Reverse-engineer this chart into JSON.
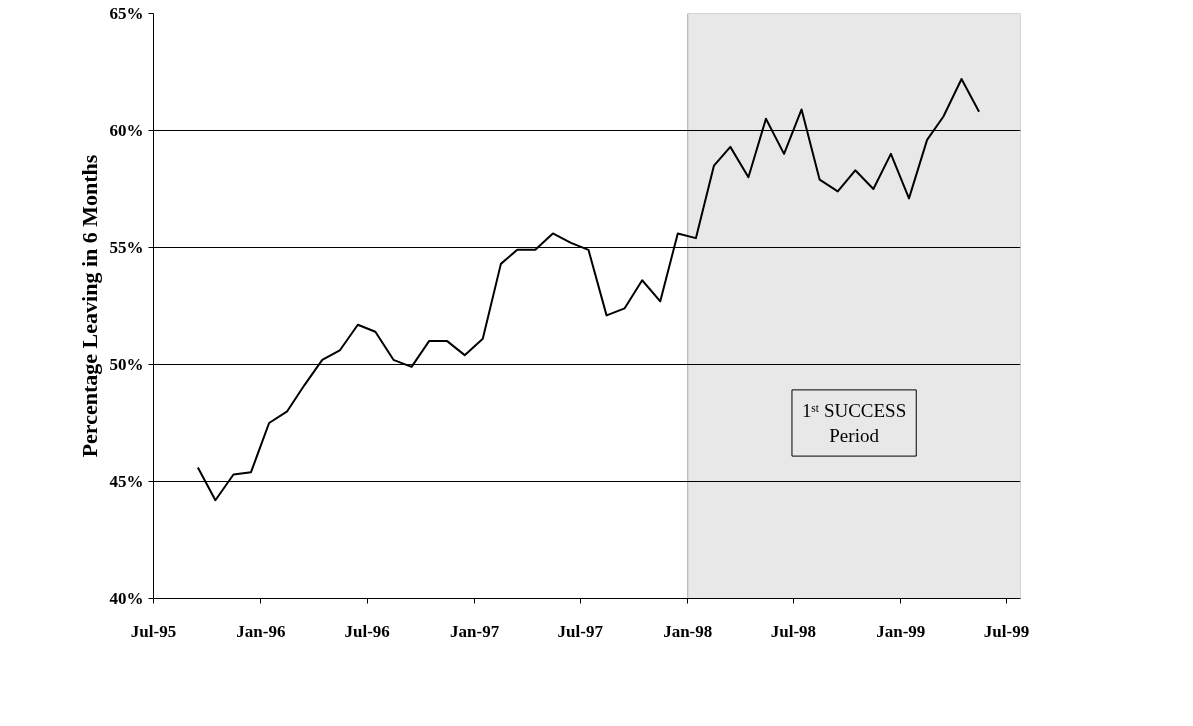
{
  "chart_data": {
    "type": "line",
    "ylabel": "Percentage Leaving in 6 Months",
    "x": [
      "1995-09-15",
      "1995-10-15",
      "1995-11-15",
      "1995-12-15",
      "1996-01-15",
      "1996-02-15",
      "1996-03-15",
      "1996-04-15",
      "1996-05-15",
      "1996-06-15",
      "1996-07-15",
      "1996-08-15",
      "1996-09-15",
      "1996-10-15",
      "1996-11-15",
      "1996-12-15",
      "1997-01-15",
      "1997-02-15",
      "1997-03-15",
      "1997-04-15",
      "1997-05-15",
      "1997-06-15",
      "1997-07-15",
      "1997-08-15",
      "1997-09-15",
      "1997-10-15",
      "1997-11-15",
      "1997-12-15",
      "1998-01-15",
      "1998-02-15",
      "1998-03-15",
      "1998-04-15",
      "1998-05-15",
      "1998-06-15",
      "1998-07-15",
      "1998-08-15",
      "1998-09-15",
      "1998-10-15",
      "1998-11-15",
      "1998-12-15",
      "1999-01-15",
      "1999-02-15",
      "1999-03-15",
      "1999-04-15",
      "1999-05-15"
    ],
    "series": [
      {
        "color": "#000000",
        "values": [
          45.6,
          44.2,
          45.3,
          45.4,
          47.5,
          48.0,
          49.1,
          50.2,
          50.6,
          51.7,
          51.4,
          50.2,
          49.9,
          51.0,
          51.0,
          50.4,
          51.1,
          54.3,
          54.9,
          54.9,
          55.6,
          55.2,
          54.9,
          52.1,
          52.4,
          53.6,
          52.7,
          55.6,
          55.4,
          58.5,
          59.3,
          58.0,
          60.5,
          59.0,
          60.9,
          57.9,
          57.4,
          58.3,
          57.5,
          59.0,
          57.1,
          59.6,
          60.6,
          62.2,
          60.8
        ]
      }
    ],
    "xlim": [
      "1995-07-01",
      "1999-07-25"
    ],
    "xticks": [
      {
        "value": "1995-07-01",
        "label": "Jul-95"
      },
      {
        "value": "1996-01-01",
        "label": "Jan-96"
      },
      {
        "value": "1996-07-01",
        "label": "Jul-96"
      },
      {
        "value": "1997-01-01",
        "label": "Jan-97"
      },
      {
        "value": "1997-07-01",
        "label": "Jul-97"
      },
      {
        "value": "1998-01-01",
        "label": "Jan-98"
      },
      {
        "value": "1998-07-01",
        "label": "Jul-98"
      },
      {
        "value": "1999-01-01",
        "label": "Jan-99"
      },
      {
        "value": "1999-07-01",
        "label": "Jul-99"
      }
    ],
    "ylim": [
      40,
      65
    ],
    "yticks": [
      {
        "value": 40,
        "label": "40%"
      },
      {
        "value": 45,
        "label": "45%"
      },
      {
        "value": 50,
        "label": "50%"
      },
      {
        "value": 55,
        "label": "55%"
      },
      {
        "value": 60,
        "label": "60%"
      },
      {
        "value": 65,
        "label": "65%"
      }
    ],
    "bands": [
      {
        "axis": "x",
        "from": "1998-01-01",
        "to": "1999-07-25",
        "label": "1ˢᵗ SUCCESS\nPeriod",
        "color": "#e8e8e8"
      }
    ],
    "grid": "y",
    "marker": "none",
    "line_style": "solid"
  }
}
